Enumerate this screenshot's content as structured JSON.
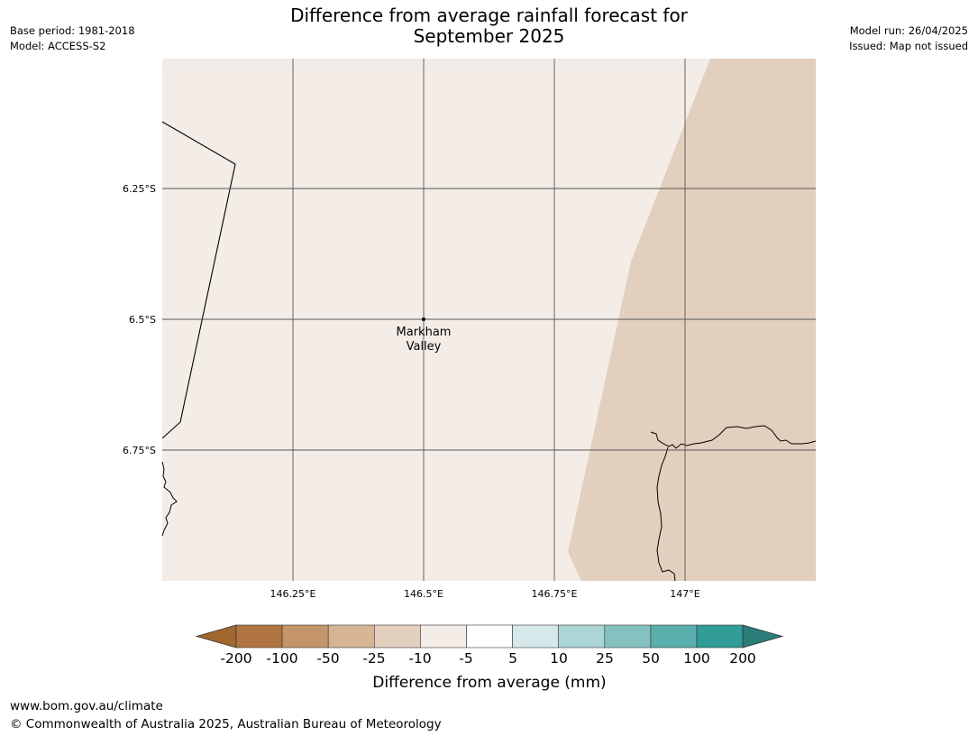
{
  "header": {
    "base_period": "Base period: 1981-2018",
    "model": "Model: ACCESS-S2",
    "model_run": "Model run: 26/04/2025",
    "issued": "Issued: Map not issued",
    "title_line1": "Difference from average rainfall forecast for",
    "title_line2": "September 2025"
  },
  "map": {
    "lat_labels": [
      "6.25°S",
      "6.5°S",
      "6.75°S"
    ],
    "lon_labels": [
      "146.25°E",
      "146.5°E",
      "146.75°E",
      "147°E"
    ],
    "place": {
      "name_line1": "Markham",
      "name_line2": "Valley",
      "lat": -6.5,
      "lon": 146.5
    },
    "colors": {
      "background_fill": "#f4ede7",
      "drier_fill": "#e2cfbe",
      "gridline": "#555555",
      "coastline": "#000000"
    }
  },
  "legend": {
    "title": "Difference from average (mm)",
    "tick_labels": [
      "-200",
      "-100",
      "-50",
      "-25",
      "-10",
      "-5",
      "5",
      "10",
      "25",
      "50",
      "100",
      "200"
    ],
    "colors": [
      "#a0672f",
      "#b07440",
      "#c4956a",
      "#d6b594",
      "#e2cfbe",
      "#f4ede7",
      "#ffffff",
      "#d6e9ea",
      "#acd6d6",
      "#84c2bf",
      "#5aaeab",
      "#329c98",
      "#2a7d79"
    ]
  },
  "footer": {
    "url": "www.bom.gov.au/climate",
    "copyright": "© Commonwealth of Australia 2025, Australian Bureau of Meteorology"
  }
}
